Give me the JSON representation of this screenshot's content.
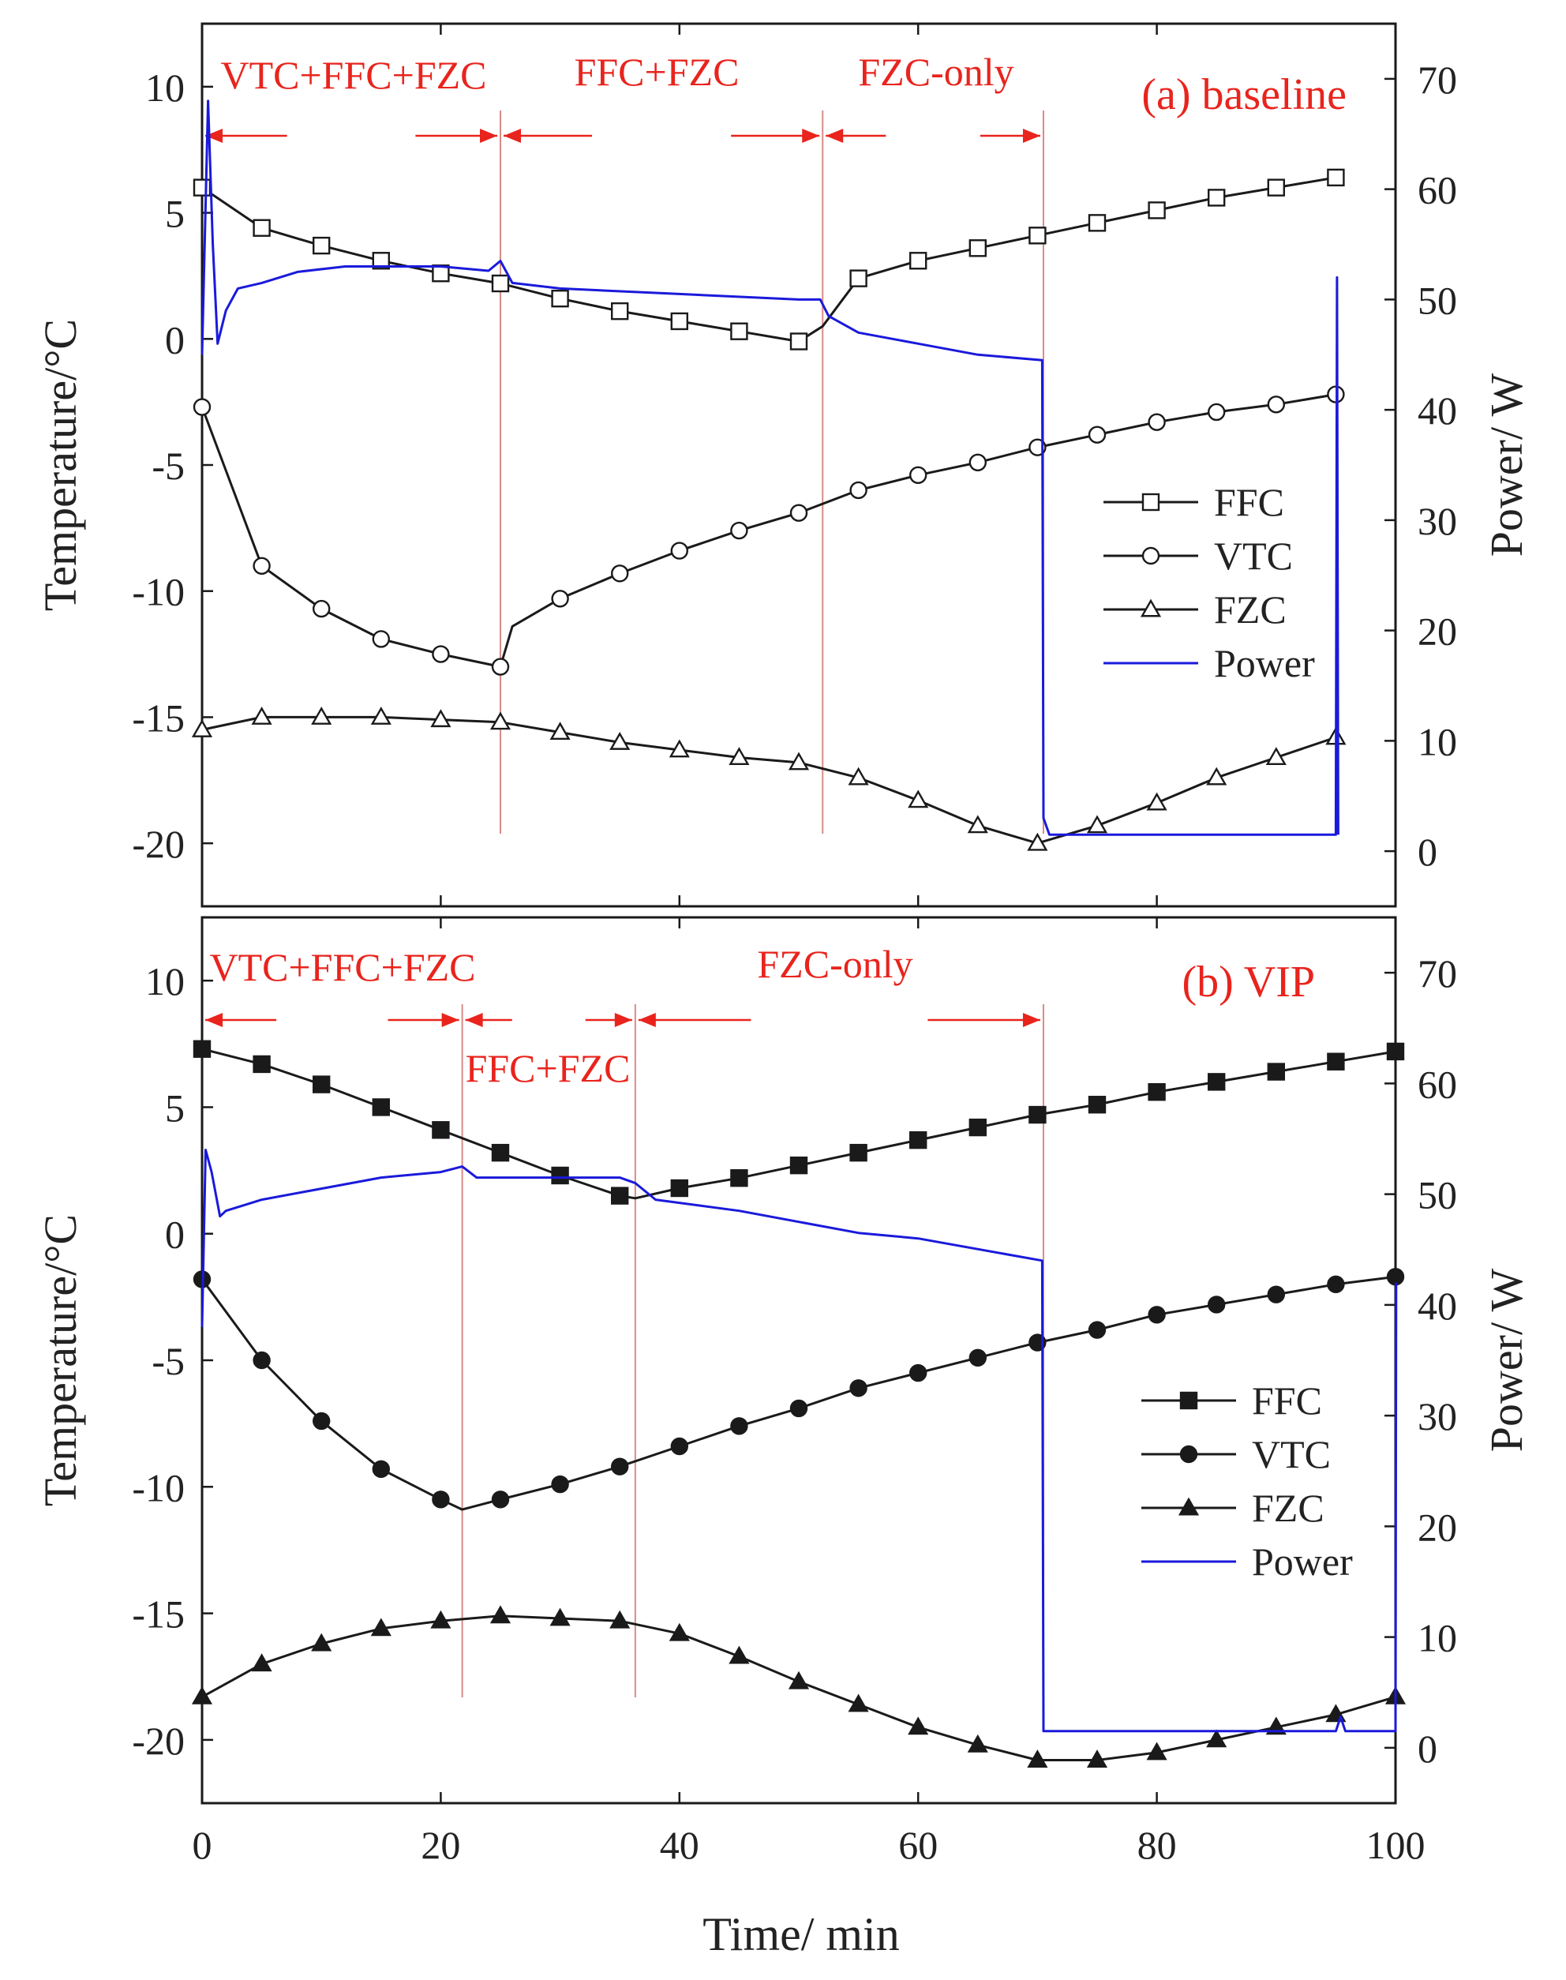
{
  "chart_data": [
    {
      "type": "line",
      "title": "(a) baseline",
      "xlabel": "Time/ min",
      "ylabel": "Temperature/°C",
      "y2label": "Power/ W",
      "xlim": [
        0,
        100
      ],
      "ylim": [
        -22.5,
        12.5
      ],
      "y2lim": [
        -5,
        75
      ],
      "xticks": [
        0,
        20,
        40,
        60,
        80,
        100
      ],
      "yticks": [
        10,
        5,
        0,
        -5,
        -10,
        -15,
        -20
      ],
      "y2ticks": [
        70,
        60,
        50,
        40,
        30,
        20,
        10,
        0
      ],
      "phase_labels": [
        {
          "text": "VTC+FFC+FZC",
          "start": 0,
          "end": 25
        },
        {
          "text": "FFC+FZC",
          "start": 25,
          "end": 52
        },
        {
          "text": "FZC-only",
          "start": 52,
          "end": 70.5
        }
      ],
      "phase_boundaries": [
        25,
        52,
        70.5
      ],
      "legend": [
        "FFC",
        "VTC",
        "FZC",
        "Power"
      ],
      "legend_position": "center-right",
      "series": [
        {
          "name": "FFC",
          "marker": "square-open",
          "x": [
            0,
            5,
            10,
            15,
            20,
            25,
            30,
            35,
            40,
            45,
            50,
            52,
            55,
            60,
            65,
            70,
            75,
            80,
            85,
            90,
            95
          ],
          "y": [
            6.0,
            4.4,
            3.7,
            3.1,
            2.6,
            2.2,
            1.6,
            1.1,
            0.7,
            0.3,
            -0.1,
            0.5,
            2.4,
            3.1,
            3.6,
            4.1,
            4.6,
            5.1,
            5.6,
            6.0,
            6.4
          ]
        },
        {
          "name": "VTC",
          "marker": "circle-open",
          "x": [
            0,
            5,
            10,
            15,
            20,
            25,
            26,
            30,
            35,
            40,
            45,
            50,
            55,
            60,
            65,
            70,
            75,
            80,
            85,
            90,
            95
          ],
          "y": [
            -2.7,
            -9.0,
            -10.7,
            -11.9,
            -12.5,
            -13.0,
            -11.4,
            -10.3,
            -9.3,
            -8.4,
            -7.6,
            -6.9,
            -6.0,
            -5.4,
            -4.9,
            -4.3,
            -3.8,
            -3.3,
            -2.9,
            -2.6,
            -2.2
          ]
        },
        {
          "name": "FZC",
          "marker": "triangle-open",
          "x": [
            0,
            5,
            10,
            15,
            20,
            25,
            30,
            35,
            40,
            45,
            50,
            55,
            60,
            65,
            70,
            75,
            80,
            85,
            90,
            95
          ],
          "y": [
            -15.5,
            -15.0,
            -15.0,
            -15.0,
            -15.1,
            -15.2,
            -15.6,
            -16.0,
            -16.3,
            -16.6,
            -16.8,
            -17.4,
            -18.3,
            -19.3,
            -20.0,
            -19.3,
            -18.4,
            -17.4,
            -16.6,
            -15.8
          ]
        },
        {
          "name": "Power",
          "axis": "right",
          "x": [
            0,
            0.5,
            0.9,
            1.3,
            2,
            3,
            5,
            8,
            12,
            20,
            24,
            25,
            26,
            30,
            40,
            50,
            51.8,
            52.5,
            55,
            60,
            65,
            70.4,
            70.5,
            71,
            80,
            95,
            95.1,
            95.2
          ],
          "y": [
            45,
            68,
            55,
            46,
            49,
            51,
            51.5,
            52.5,
            53,
            53,
            52.6,
            53.5,
            51.5,
            51,
            50.5,
            50,
            50,
            48.5,
            47,
            46,
            45,
            44.5,
            3,
            1.5,
            1.5,
            1.5,
            52,
            1.5
          ]
        }
      ]
    },
    {
      "type": "line",
      "title": "(b) VIP",
      "xlabel": "Time/ min",
      "ylabel": "Temperature/°C",
      "y2label": "Power/ W",
      "xlim": [
        0,
        100
      ],
      "ylim": [
        -22.5,
        12.5
      ],
      "y2lim": [
        -5,
        75
      ],
      "xticks": [
        0,
        20,
        40,
        60,
        80,
        100
      ],
      "yticks": [
        10,
        5,
        0,
        -5,
        -10,
        -15,
        -20
      ],
      "y2ticks": [
        70,
        60,
        50,
        40,
        30,
        20,
        10,
        0
      ],
      "phase_labels": [
        {
          "text": "VTC+FFC+FZC",
          "start": 0,
          "end": 21.8
        },
        {
          "text": "FFC+FZC",
          "start": 21.8,
          "end": 36.3
        },
        {
          "text": "FZC-only",
          "start": 36.3,
          "end": 70.5
        }
      ],
      "phase_boundaries": [
        21.8,
        36.3,
        70.5
      ],
      "legend": [
        "FFC",
        "VTC",
        "FZC",
        "Power"
      ],
      "legend_position": "center-right",
      "series": [
        {
          "name": "FFC",
          "marker": "square-filled",
          "x": [
            0,
            5,
            10,
            15,
            20,
            25,
            30,
            35,
            36.3,
            40,
            45,
            50,
            55,
            60,
            65,
            70,
            75,
            80,
            85,
            90,
            95,
            100
          ],
          "y": [
            7.3,
            6.7,
            5.9,
            5.0,
            4.1,
            3.2,
            2.3,
            1.5,
            1.4,
            1.8,
            2.2,
            2.7,
            3.2,
            3.7,
            4.2,
            4.7,
            5.1,
            5.6,
            6.0,
            6.4,
            6.8,
            7.2
          ]
        },
        {
          "name": "VTC",
          "marker": "circle-filled",
          "x": [
            0,
            5,
            10,
            15,
            20,
            21.8,
            25,
            30,
            35,
            40,
            45,
            50,
            55,
            60,
            65,
            70,
            75,
            80,
            85,
            90,
            95,
            100
          ],
          "y": [
            -1.8,
            -5.0,
            -7.4,
            -9.3,
            -10.5,
            -10.9,
            -10.5,
            -9.9,
            -9.2,
            -8.4,
            -7.6,
            -6.9,
            -6.1,
            -5.5,
            -4.9,
            -4.3,
            -3.8,
            -3.2,
            -2.8,
            -2.4,
            -2.0,
            -1.7
          ]
        },
        {
          "name": "FZC",
          "marker": "triangle-filled",
          "x": [
            0,
            5,
            10,
            15,
            20,
            25,
            30,
            35,
            40,
            45,
            50,
            55,
            60,
            65,
            70,
            75,
            80,
            85,
            90,
            95,
            100
          ],
          "y": [
            -18.3,
            -17.0,
            -16.2,
            -15.6,
            -15.3,
            -15.1,
            -15.2,
            -15.3,
            -15.8,
            -16.7,
            -17.7,
            -18.6,
            -19.5,
            -20.2,
            -20.8,
            -20.8,
            -20.5,
            -20.0,
            -19.5,
            -19.0,
            -18.3
          ]
        },
        {
          "name": "Power",
          "axis": "right",
          "x": [
            0,
            0.3,
            0.8,
            1.5,
            2,
            5,
            10,
            15,
            20,
            21.8,
            23,
            30,
            35,
            36.3,
            38,
            45,
            55,
            60,
            70.4,
            70.5,
            95,
            95.4,
            95.8,
            100,
            100.05
          ],
          "y": [
            38,
            54,
            52,
            48,
            48.5,
            49.5,
            50.5,
            51.5,
            52,
            52.5,
            51.5,
            51.5,
            51.5,
            51,
            49.5,
            48.5,
            46.5,
            46,
            44,
            1.5,
            1.5,
            2.8,
            1.5,
            1.5,
            42
          ]
        }
      ]
    }
  ]
}
